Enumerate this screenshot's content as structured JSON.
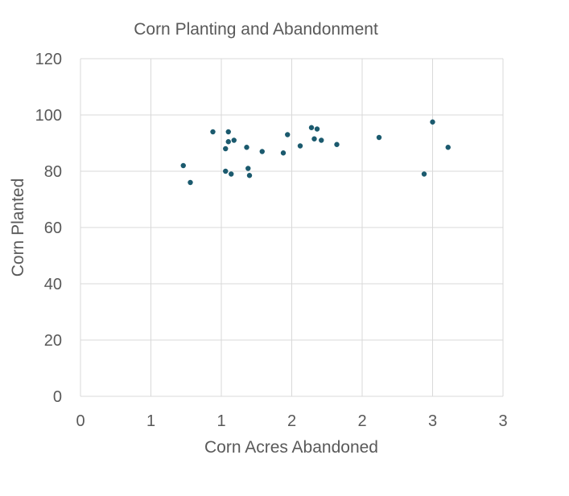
{
  "chart_data": {
    "type": "scatter",
    "title": "Corn Planting and Abandonment",
    "xlabel": "Corn Acres Abandoned",
    "ylabel": "Corn Planted",
    "xlim": [
      0,
      3
    ],
    "ylim": [
      0,
      120
    ],
    "x_tick_values": [
      0,
      0.5,
      1,
      1.5,
      2,
      2.5,
      3
    ],
    "x_tick_labels": [
      "0",
      "1",
      "1",
      "2",
      "2",
      "3",
      "3"
    ],
    "y_tick_values": [
      0,
      20,
      40,
      60,
      80,
      100,
      120
    ],
    "y_tick_labels": [
      "0",
      "20",
      "40",
      "60",
      "80",
      "100",
      "120"
    ],
    "grid": true,
    "legend": "none",
    "marker_color": "#1b5a6e",
    "series": [
      {
        "points": [
          {
            "x": 0.73,
            "y": 82
          },
          {
            "x": 0.78,
            "y": 76
          },
          {
            "x": 0.94,
            "y": 94
          },
          {
            "x": 1.03,
            "y": 88
          },
          {
            "x": 1.03,
            "y": 80
          },
          {
            "x": 1.05,
            "y": 94
          },
          {
            "x": 1.05,
            "y": 90.5
          },
          {
            "x": 1.07,
            "y": 79
          },
          {
            "x": 1.09,
            "y": 91
          },
          {
            "x": 1.18,
            "y": 88.5
          },
          {
            "x": 1.19,
            "y": 81
          },
          {
            "x": 1.2,
            "y": 78.5
          },
          {
            "x": 1.29,
            "y": 87
          },
          {
            "x": 1.44,
            "y": 86.5
          },
          {
            "x": 1.47,
            "y": 93
          },
          {
            "x": 1.56,
            "y": 89
          },
          {
            "x": 1.64,
            "y": 95.5
          },
          {
            "x": 1.66,
            "y": 91.5
          },
          {
            "x": 1.68,
            "y": 95
          },
          {
            "x": 1.71,
            "y": 91
          },
          {
            "x": 1.82,
            "y": 89.5
          },
          {
            "x": 2.12,
            "y": 92
          },
          {
            "x": 2.44,
            "y": 79
          },
          {
            "x": 2.5,
            "y": 97.5
          },
          {
            "x": 2.61,
            "y": 88.5
          }
        ]
      }
    ]
  }
}
